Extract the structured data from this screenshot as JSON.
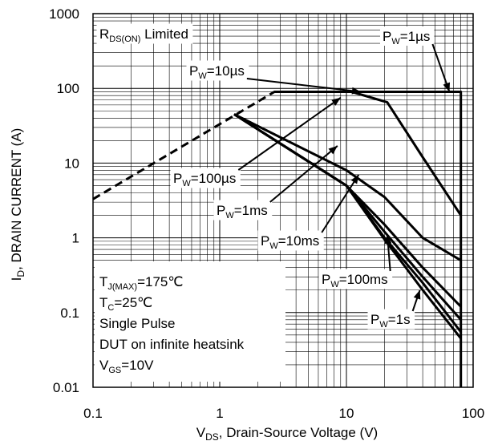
{
  "chart_data": {
    "type": "line",
    "xlabel": {
      "main": "V",
      "sub": "DS",
      "rest": ", Drain-Source Voltage (V)"
    },
    "ylabel": {
      "main": "I",
      "sub": "D",
      "rest": ", DRAIN CURRENT (A)"
    },
    "xscale": "log",
    "yscale": "log",
    "xlim": [
      0.1,
      100
    ],
    "ylim": [
      0.01,
      1000
    ],
    "grid": true,
    "x_ticks": [
      {
        "value": 0.1,
        "label": "0.1"
      },
      {
        "value": 1,
        "label": "1"
      },
      {
        "value": 10,
        "label": "10"
      },
      {
        "value": 100,
        "label": "100"
      }
    ],
    "y_ticks": [
      {
        "value": 1000,
        "label": "1000"
      },
      {
        "value": 100,
        "label": "100"
      },
      {
        "value": 10,
        "label": "10"
      },
      {
        "value": 1,
        "label": "1"
      },
      {
        "value": 0.1,
        "label": "0.1"
      },
      {
        "value": 0.01,
        "label": "0.01"
      }
    ],
    "series": [
      {
        "id": "rdson",
        "style": "dashed",
        "points": [
          [
            0.1,
            3.3
          ],
          [
            2.7,
            90
          ],
          [
            11,
            90
          ]
        ]
      },
      {
        "id": "pw1us",
        "style": "solid",
        "points": [
          [
            2.7,
            90
          ],
          [
            80,
            90
          ],
          [
            80,
            0.01
          ]
        ]
      },
      {
        "id": "pw10us",
        "style": "solid",
        "points": [
          [
            11,
            90
          ],
          [
            21,
            65
          ],
          [
            40,
            12
          ],
          [
            80,
            2
          ]
        ]
      },
      {
        "id": "pw100us",
        "style": "solid",
        "points": [
          [
            1.3,
            45
          ],
          [
            10,
            8
          ],
          [
            20,
            3.5
          ],
          [
            40,
            1
          ],
          [
            80,
            0.5
          ]
        ]
      },
      {
        "id": "pw1ms",
        "style": "solid",
        "points": [
          [
            1.3,
            45
          ],
          [
            10,
            5
          ],
          [
            20,
            1.5
          ],
          [
            40,
            0.4
          ],
          [
            80,
            0.12
          ]
        ]
      },
      {
        "id": "pw10ms",
        "style": "solid",
        "points": [
          [
            1.3,
            45
          ],
          [
            10,
            5
          ],
          [
            20,
            1.2
          ],
          [
            40,
            0.3
          ],
          [
            80,
            0.08
          ]
        ]
      },
      {
        "id": "pw100ms",
        "style": "solid",
        "points": [
          [
            1.3,
            45
          ],
          [
            10,
            5
          ],
          [
            20,
            1
          ],
          [
            40,
            0.25
          ],
          [
            80,
            0.055
          ]
        ]
      },
      {
        "id": "pw1s",
        "style": "solid",
        "points": [
          [
            1.3,
            45
          ],
          [
            10,
            5
          ],
          [
            20,
            0.95
          ],
          [
            40,
            0.2
          ],
          [
            80,
            0.045
          ]
        ]
      }
    ],
    "annotations": [
      {
        "id": "rdson-label",
        "main": "R",
        "sub": "DS(ON)",
        "rest": " Limited",
        "boxed": true
      },
      {
        "id": "pw1us-label",
        "main": "P",
        "sub": "W",
        "rest": "=1µs",
        "boxed": false,
        "arrow_to": [
          65,
          90
        ]
      },
      {
        "id": "pw10us-label",
        "main": "P",
        "sub": "W",
        "rest": "=10µs",
        "boxed": true,
        "arrow_to": [
          13,
          90
        ]
      },
      {
        "id": "pw100us-label",
        "main": "P",
        "sub": "W",
        "rest": "=100µs",
        "boxed": true,
        "arrow_to": [
          9,
          75
        ]
      },
      {
        "id": "pw1ms-label",
        "main": "P",
        "sub": "W",
        "rest": "=1ms",
        "boxed": true,
        "arrow_to": [
          8.5,
          17
        ]
      },
      {
        "id": "pw10ms-label",
        "main": "P",
        "sub": "W",
        "rest": "=10ms",
        "boxed": true,
        "arrow_to": [
          12.5,
          7
        ]
      },
      {
        "id": "pw100ms-label",
        "main": "P",
        "sub": "W",
        "rest": "=100ms",
        "boxed": true,
        "arrow_to": [
          21,
          1.1
        ]
      },
      {
        "id": "pw1s-label",
        "main": "P",
        "sub": "W",
        "rest": "=1s",
        "boxed": true,
        "arrow_to": [
          38,
          0.2
        ]
      }
    ],
    "conditions": [
      {
        "main": "T",
        "sub": "J(MAX)",
        "rest": "=175℃"
      },
      {
        "main": "T",
        "sub": "C",
        "rest": "=25℃"
      },
      {
        "main": "Single Pulse",
        "sub": "",
        "rest": ""
      },
      {
        "main": "DUT on infinite heatsink",
        "sub": "",
        "rest": ""
      },
      {
        "main": "V",
        "sub": "GS",
        "rest": "=10V"
      }
    ]
  }
}
